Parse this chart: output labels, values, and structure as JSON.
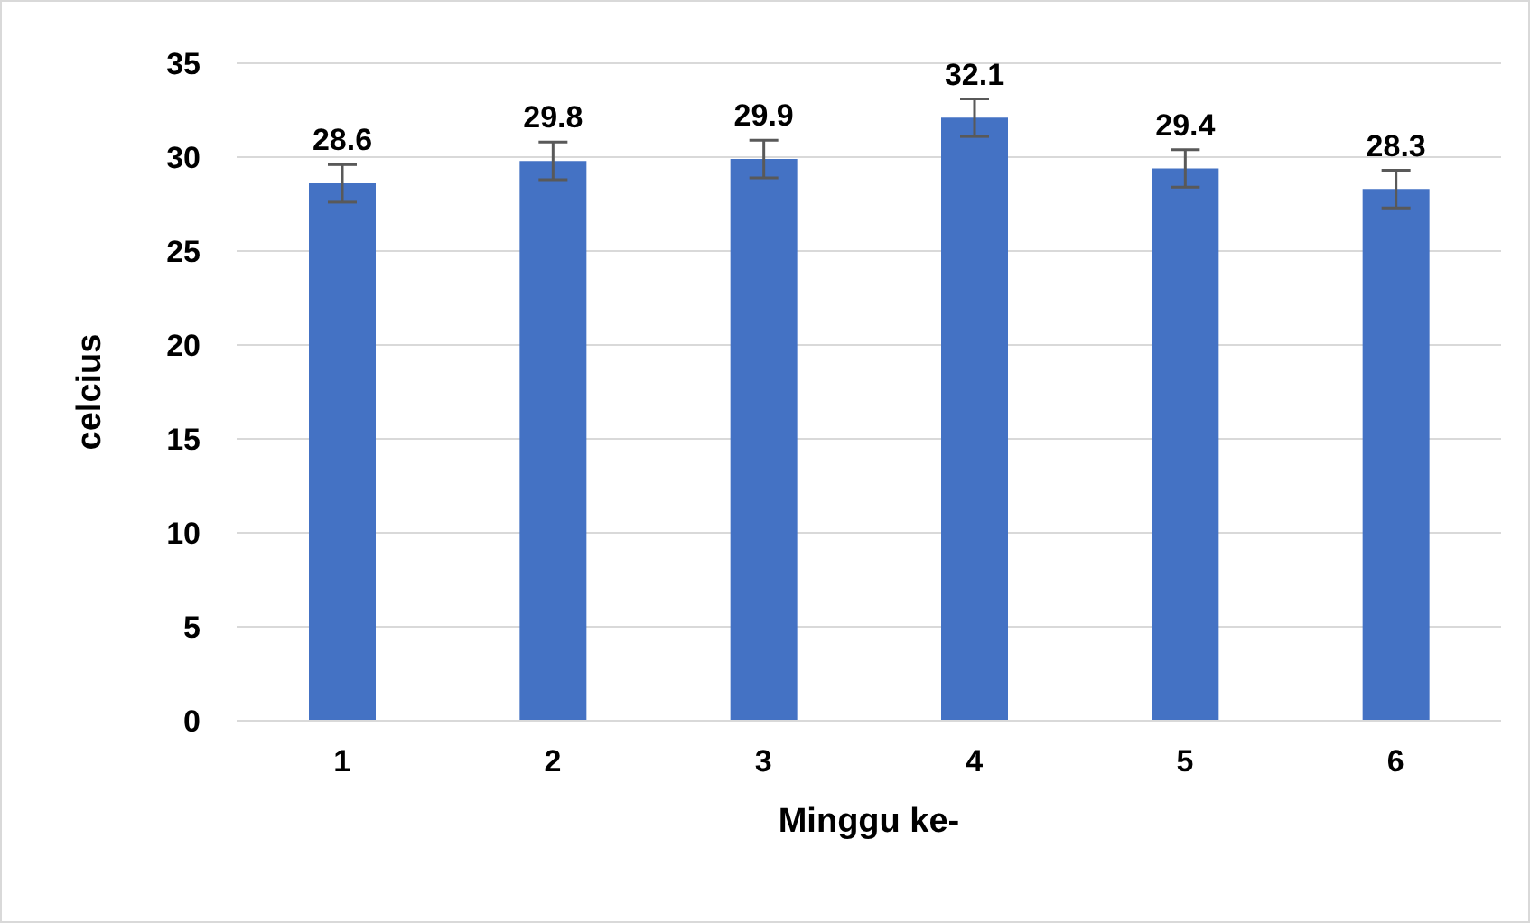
{
  "chart_data": {
    "type": "bar",
    "xlabel": "Minggu ke-",
    "ylabel": "celcius",
    "categories": [
      "1",
      "2",
      "3",
      "4",
      "5",
      "6"
    ],
    "values": [
      28.6,
      29.8,
      29.9,
      32.1,
      29.4,
      28.3
    ],
    "errors": [
      1,
      1,
      1,
      1,
      1,
      1
    ],
    "color": "#4472c4",
    "data_labels": true,
    "ylim": [
      0,
      35
    ],
    "yticks": [
      0,
      5,
      10,
      15,
      20,
      25,
      30,
      35
    ],
    "grid": "y"
  }
}
